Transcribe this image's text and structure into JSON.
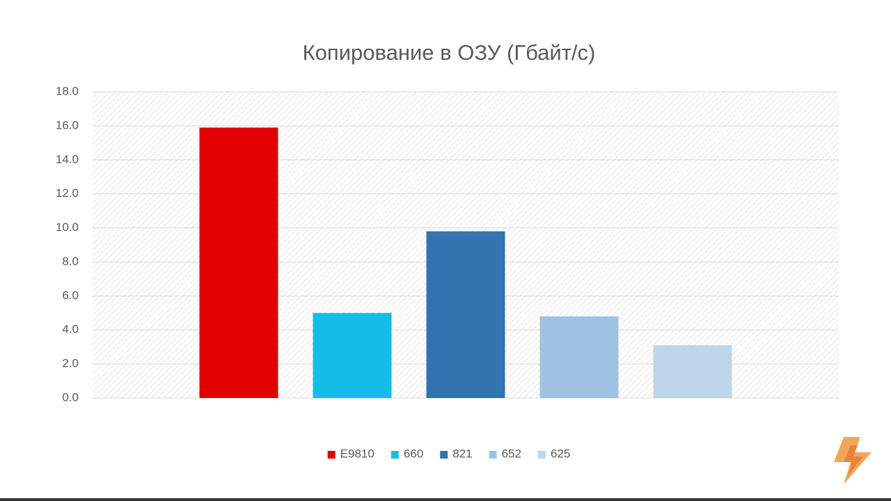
{
  "chart_data": {
    "type": "bar",
    "title": "Копирование в ОЗУ (Гбайт/с)",
    "categories": [
      null
    ],
    "series": [
      {
        "name": "E9810",
        "color": "#e30000",
        "values": [
          15.9
        ]
      },
      {
        "name": "660",
        "color": "#12bde8",
        "values": [
          5.0
        ]
      },
      {
        "name": "821",
        "color": "#3174b0",
        "values": [
          9.8
        ]
      },
      {
        "name": "652",
        "color": "#9fc2e2",
        "values": [
          4.8
        ]
      },
      {
        "name": "625",
        "color": "#bed5ea",
        "values": [
          3.1
        ]
      }
    ],
    "ylim": [
      0,
      18
    ],
    "yticks": [
      {
        "value": 0,
        "label": "0.0"
      },
      {
        "value": 2,
        "label": "2.0"
      },
      {
        "value": 4,
        "label": "4.0"
      },
      {
        "value": 6,
        "label": "6.0"
      },
      {
        "value": 8,
        "label": "8.0"
      },
      {
        "value": 10,
        "label": "10.0"
      },
      {
        "value": 12,
        "label": "12.0"
      },
      {
        "value": 14,
        "label": "14.0"
      },
      {
        "value": 16,
        "label": "16.0"
      },
      {
        "value": 18,
        "label": "18.0"
      }
    ],
    "grid": true,
    "legend": "bottom"
  }
}
